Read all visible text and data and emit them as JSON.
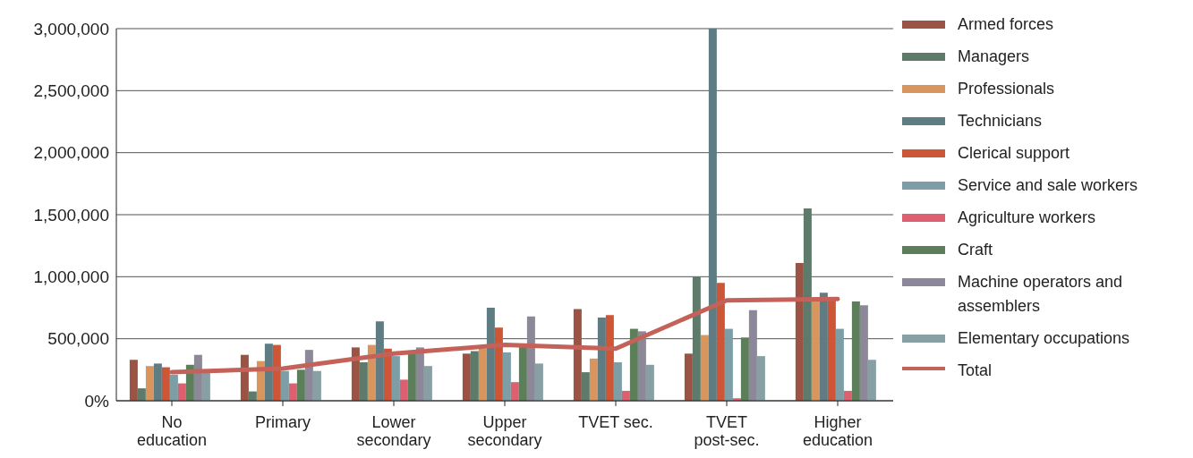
{
  "chart_data": {
    "type": "bar",
    "categories": [
      "No education",
      "Primary",
      "Lower secondary",
      "Upper secondary",
      "TVET sec.",
      "TVET post-sec.",
      "Higher education"
    ],
    "series": [
      {
        "name": "Armed forces",
        "color": "#9b5443",
        "values": [
          330000,
          370000,
          430000,
          380000,
          740000,
          380000,
          1110000
        ]
      },
      {
        "name": "Managers",
        "color": "#5e7a6b",
        "values": [
          100000,
          75000,
          310000,
          400000,
          230000,
          1000000,
          1550000
        ]
      },
      {
        "name": "Professionals",
        "color": "#d9955e",
        "values": [
          280000,
          320000,
          450000,
          420000,
          340000,
          530000,
          800000
        ]
      },
      {
        "name": "Technicians",
        "color": "#5f7c82",
        "values": [
          300000,
          460000,
          640000,
          750000,
          670000,
          3000000,
          870000
        ]
      },
      {
        "name": "Clerical support",
        "color": "#cc5636",
        "values": [
          270000,
          450000,
          420000,
          590000,
          690000,
          950000,
          830000
        ]
      },
      {
        "name": "Service and sale workers",
        "color": "#7e9ea6",
        "values": [
          210000,
          240000,
          360000,
          390000,
          310000,
          580000,
          580000
        ]
      },
      {
        "name": "Agriculture workers",
        "color": "#dc6070",
        "values": [
          140000,
          140000,
          170000,
          150000,
          80000,
          20000,
          80000
        ]
      },
      {
        "name": "Craft",
        "color": "#5d7e5a",
        "values": [
          290000,
          250000,
          380000,
          450000,
          580000,
          510000,
          800000
        ]
      },
      {
        "name": "Machine operators and assemblers",
        "color": "#8c8799",
        "values": [
          370000,
          410000,
          430000,
          680000,
          560000,
          730000,
          770000
        ]
      },
      {
        "name": "Elementary occupations",
        "color": "#88a0a4",
        "values": [
          230000,
          240000,
          280000,
          300000,
          290000,
          360000,
          330000
        ]
      },
      {
        "name": "Total",
        "type": "line",
        "color": "#c4625a",
        "values": [
          230000,
          260000,
          380000,
          450000,
          420000,
          810000,
          820000
        ]
      }
    ],
    "ylim": [
      0,
      3000000
    ],
    "yticks": [
      {
        "value": 0,
        "label": "0%"
      },
      {
        "value": 500000,
        "label": "500,000"
      },
      {
        "value": 1000000,
        "label": "1,000,000"
      },
      {
        "value": 1500000,
        "label": "1,500,000"
      },
      {
        "value": 2000000,
        "label": "2,000,000"
      },
      {
        "value": 2500000,
        "label": "2,500,000"
      },
      {
        "value": 3000000,
        "label": "3,000,000"
      }
    ],
    "grid": "y",
    "legend": "right",
    "marker": "none"
  }
}
